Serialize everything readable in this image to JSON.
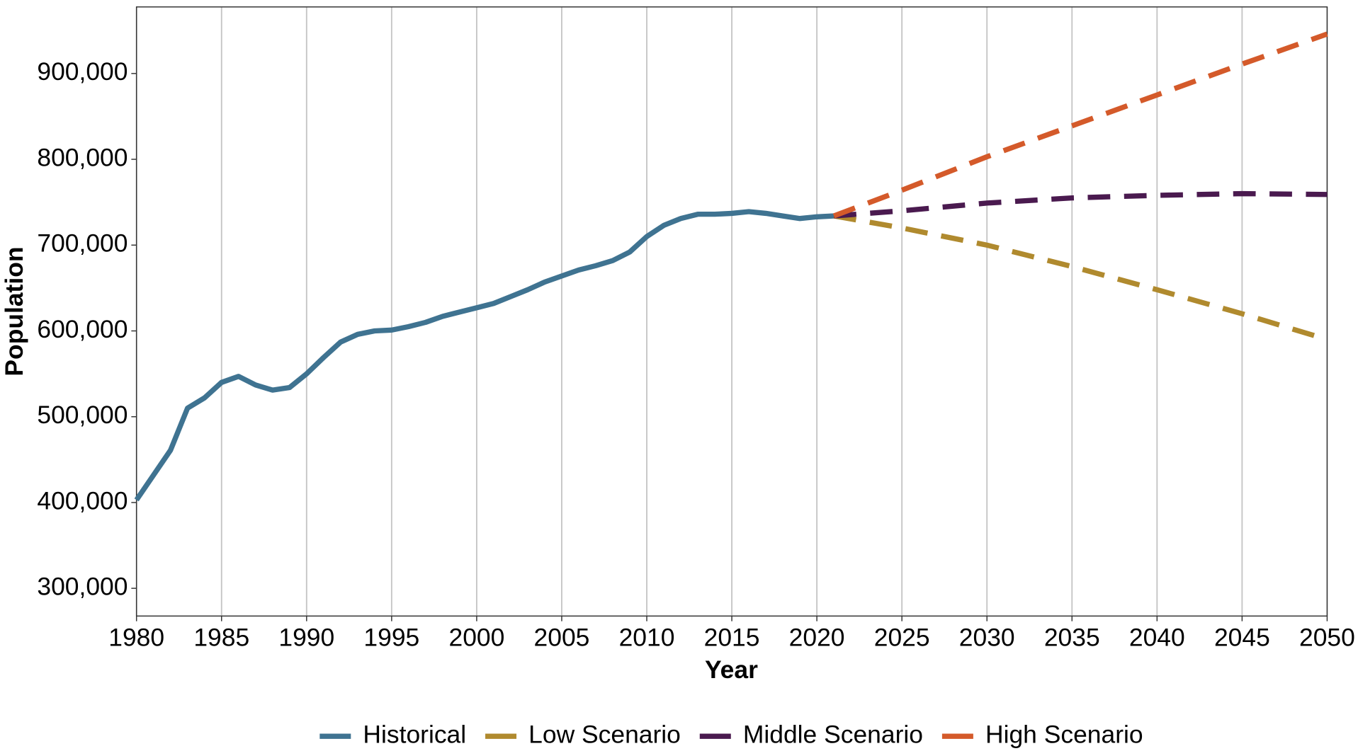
{
  "chart_data": {
    "type": "line",
    "x_label": "Year",
    "y_label": "Population",
    "xlim": [
      1980,
      2050
    ],
    "xticks": [
      1980,
      1985,
      1990,
      1995,
      2000,
      2005,
      2010,
      2015,
      2020,
      2025,
      2030,
      2035,
      2040,
      2045,
      2050
    ],
    "ylim": [
      267700,
      977600
    ],
    "yticks": [
      {
        "value": 300000,
        "label": "300,000"
      },
      {
        "value": 400000,
        "label": "400,000"
      },
      {
        "value": 500000,
        "label": "500,000"
      },
      {
        "value": 600000,
        "label": "600,000"
      },
      {
        "value": 700000,
        "label": "700,000"
      },
      {
        "value": 800000,
        "label": "800,000"
      },
      {
        "value": 900000,
        "label": "900,000"
      }
    ],
    "grid": "x",
    "legend": "bottom",
    "series": [
      {
        "name": "Historical",
        "color": "#3f7391",
        "dashed": false,
        "x": [
          1980,
          1981,
          1982,
          1983,
          1984,
          1985,
          1986,
          1987,
          1988,
          1989,
          1990,
          1991,
          1992,
          1993,
          1994,
          1995,
          1996,
          1997,
          1998,
          1999,
          2000,
          2001,
          2002,
          2003,
          2004,
          2005,
          2006,
          2007,
          2008,
          2009,
          2010,
          2011,
          2012,
          2013,
          2014,
          2015,
          2016,
          2017,
          2018,
          2019,
          2020,
          2021
        ],
        "values": [
          403000,
          432000,
          461000,
          510000,
          522000,
          540000,
          547000,
          537000,
          531000,
          534000,
          550000,
          569000,
          587000,
          596000,
          600000,
          601000,
          605000,
          610000,
          617000,
          622000,
          627000,
          632000,
          640000,
          648000,
          657000,
          664000,
          671000,
          676000,
          682000,
          692000,
          710000,
          723000,
          731000,
          736000,
          736000,
          737000,
          739000,
          737000,
          734000,
          731000,
          733000,
          734000
        ]
      },
      {
        "name": "Low Scenario",
        "color": "#b08a2e",
        "dashed": true,
        "x": [
          2021,
          2025,
          2030,
          2035,
          2040,
          2045,
          2050
        ],
        "values": [
          734000,
          720000,
          700000,
          675000,
          648000,
          620000,
          590000
        ]
      },
      {
        "name": "Middle Scenario",
        "color": "#4a1a4f",
        "dashed": true,
        "x": [
          2021,
          2025,
          2030,
          2035,
          2040,
          2045,
          2050
        ],
        "values": [
          734000,
          740000,
          749000,
          755000,
          758000,
          760000,
          759000
        ]
      },
      {
        "name": "High Scenario",
        "color": "#d45a2a",
        "dashed": true,
        "x": [
          2021,
          2025,
          2030,
          2035,
          2040,
          2045,
          2050
        ],
        "values": [
          734000,
          764000,
          803000,
          839000,
          875000,
          911000,
          946000
        ]
      }
    ]
  }
}
